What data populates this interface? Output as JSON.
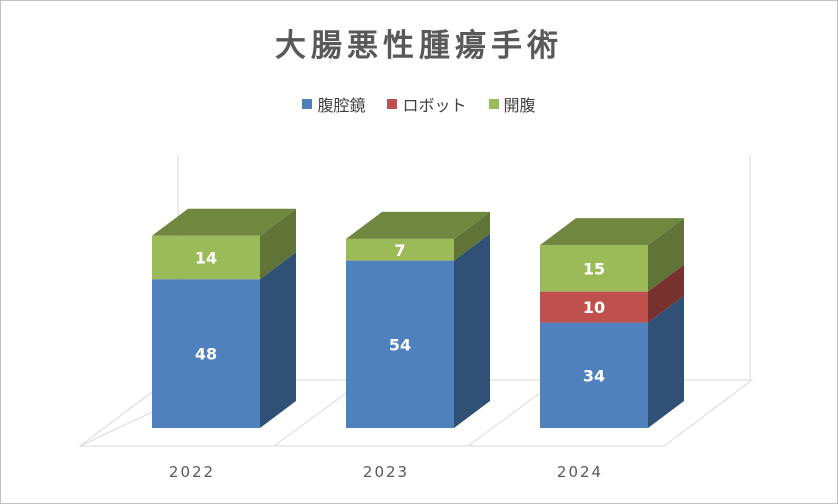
{
  "chart_data": {
    "type": "bar",
    "stacked": true,
    "three_d": true,
    "title": "大腸悪性腫瘍手術",
    "categories": [
      "2022",
      "2023",
      "2024"
    ],
    "series": [
      {
        "name": "腹腔鏡",
        "values": [
          48,
          54,
          34
        ],
        "color": "#4f81bd"
      },
      {
        "name": "ロボット",
        "values": [
          0,
          0,
          10
        ],
        "color": "#c0504d"
      },
      {
        "name": "開腹",
        "values": [
          14,
          7,
          15
        ],
        "color": "#9bbb59"
      }
    ],
    "legend_position": "top",
    "grid": false
  }
}
